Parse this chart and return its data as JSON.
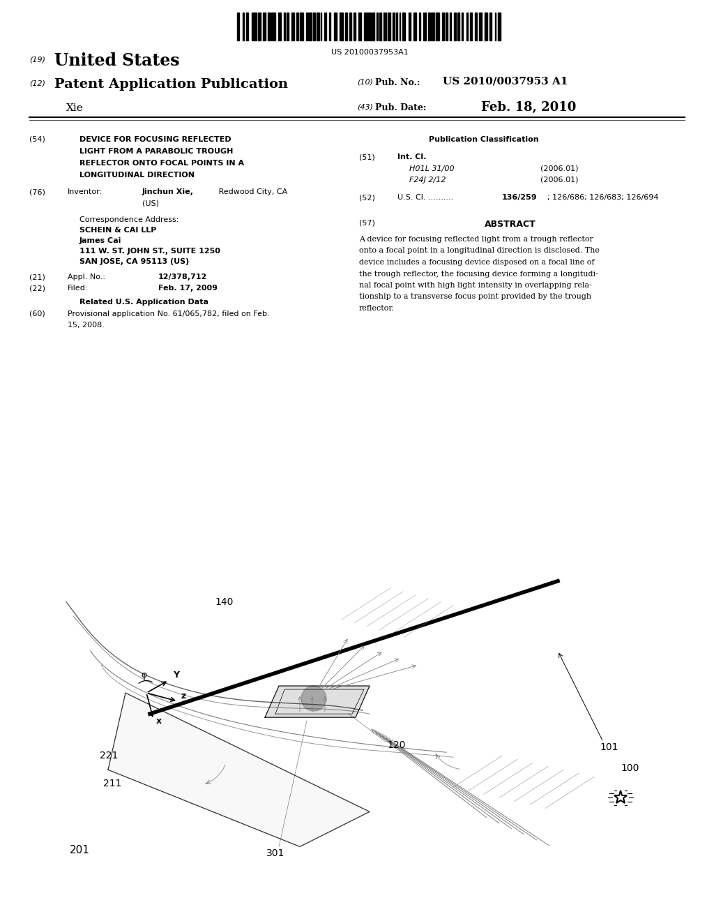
{
  "background_color": "#ffffff",
  "barcode_text": "US 20100037953A1",
  "patent_number": "US 2010/0037953 A1",
  "pub_date": "Feb. 18, 2010",
  "country": "United States",
  "type": "Patent Application Publication",
  "inventor_name": "Xie",
  "num_19": "(19)",
  "num_12": "(12)",
  "num_10": "(10)",
  "num_43": "(43)",
  "title_54": "(54)",
  "title_lines": [
    "DEVICE FOR FOCUSING REFLECTED",
    "LIGHT FROM A PARABOLIC TROUGH",
    "REFLECTOR ONTO FOCAL POINTS IN A",
    "LONGITUDINAL DIRECTION"
  ],
  "inventor_76": "(76)",
  "inventor_bold": "Jinchun Xie,",
  "inventor_rest": " Redwood City, CA",
  "inventor_us": "(US)",
  "corr_label": "Correspondence Address:",
  "corr_firm": "SCHEIN & CAI LLP",
  "corr_person": "James Cai",
  "corr_addr1": "111 W. ST. JOHN ST., SUITE 1250",
  "corr_addr2": "SAN JOSE, CA 95113 (US)",
  "appl_value": "12/378,712",
  "filed_value": "Feb. 17, 2009",
  "related_label": "Related U.S. Application Data",
  "provisional_text1": "Provisional application No. 61/065,782, filed on Feb.",
  "provisional_text2": "15, 2008.",
  "pub_class_title": "Publication Classification",
  "int_cl_1": "H01L 31/00",
  "int_cl_1_date": "(2006.01)",
  "int_cl_2": "F24J 2/12",
  "int_cl_2_date": "(2006.01)",
  "us_cl_dots": "U.S. Cl. ..........",
  "us_cl_bold": "136/259",
  "us_cl_rest": "; 126/686; 126/683; 126/694",
  "abstract_title": "ABSTRACT",
  "abstract_lines": [
    "A device for focusing reflected light from a trough reflector",
    "onto a focal point in a longitudinal direction is disclosed. The",
    "device includes a focusing device disposed on a focal line of",
    "the trough reflector, the focusing device forming a longitudi-",
    "nal focal point with high light intensity in overlapping rela-",
    "tionship to a transverse focus point provided by the trough",
    "reflector."
  ]
}
